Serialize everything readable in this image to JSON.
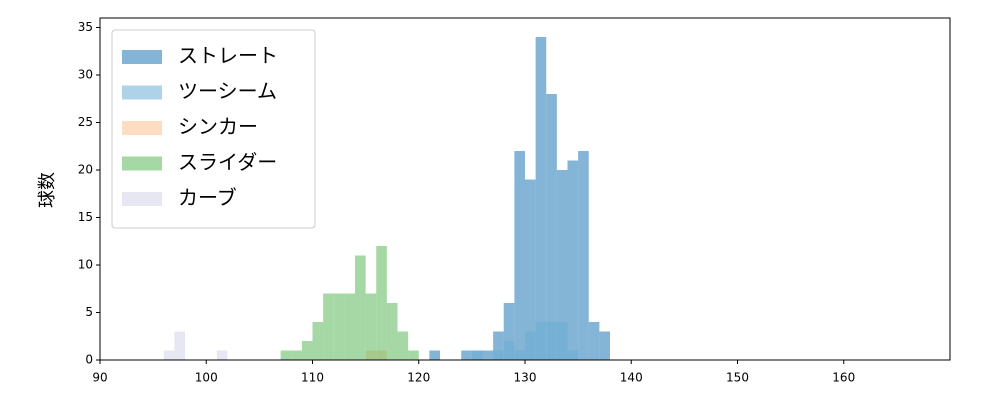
{
  "chart_data": {
    "type": "histogram",
    "ylabel": "球数",
    "xlim": [
      90,
      170
    ],
    "ylim": [
      0,
      36
    ],
    "xticks": [
      90,
      100,
      110,
      120,
      130,
      140,
      150,
      160
    ],
    "yticks": [
      0,
      5,
      10,
      15,
      20,
      25,
      30,
      35
    ],
    "legend": "upper left",
    "series": [
      {
        "name": "ストレート",
        "color": "#1f77b4",
        "bins": [
          121,
          122,
          123,
          124,
          125,
          126,
          127,
          128,
          129,
          130,
          131,
          132,
          133,
          134,
          135,
          136,
          137,
          138
        ],
        "values": [
          1,
          0,
          0,
          1,
          1,
          1,
          3,
          6,
          22,
          19,
          34,
          28,
          20,
          21,
          22,
          4,
          3
        ]
      },
      {
        "name": "ツーシーム",
        "color": "#6baed6",
        "bins": [
          125,
          126,
          127,
          128,
          129,
          130,
          131,
          132,
          133,
          134,
          135
        ],
        "values": [
          1,
          0,
          1,
          2,
          1,
          3,
          4,
          4,
          4,
          1
        ]
      },
      {
        "name": "シンカー",
        "color": "#fdbf90",
        "bins": [
          115,
          116,
          117
        ],
        "values": [
          1,
          1
        ]
      },
      {
        "name": "スライダー",
        "color": "#5cb85c",
        "bins": [
          107,
          108,
          109,
          110,
          111,
          112,
          113,
          114,
          115,
          116,
          117,
          118,
          119,
          120
        ],
        "values": [
          1,
          1,
          2,
          4,
          7,
          7,
          7,
          11,
          7,
          12,
          6,
          3,
          1
        ]
      },
      {
        "name": "カーブ",
        "color": "#d4d4ea",
        "bins": [
          96,
          97,
          98,
          99,
          100,
          101,
          102
        ],
        "values": [
          1,
          3,
          0,
          0,
          0,
          1
        ]
      }
    ]
  }
}
